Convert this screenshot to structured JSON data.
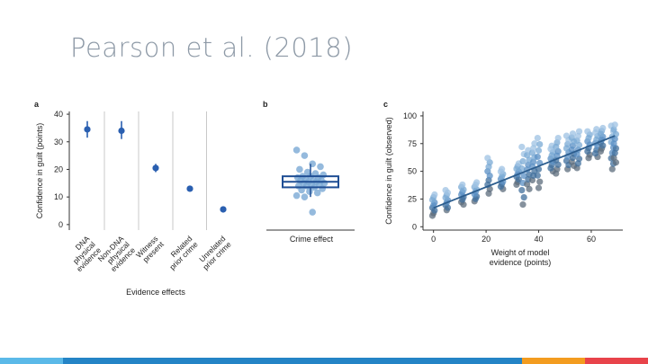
{
  "slide": {
    "title": "Pearson et al. (2018)"
  },
  "footer": {
    "colors": [
      "#5bb9e8",
      "#2484c6",
      "#f39c1f",
      "#e8434a"
    ]
  },
  "colors": {
    "marker": "#2a5fb0",
    "box": "#1f4e94",
    "scatter_points": [
      "#9ec2e3",
      "#7aa9d4",
      "#5a8fc4",
      "#406f9c",
      "#5c6c7c"
    ],
    "fit_line": "#2c5d8e",
    "divider": "#c8c8c8",
    "axis": "#333333"
  },
  "chart_data": [
    {
      "panel": "a",
      "type": "scatter",
      "categories": [
        "DNA physical evidence",
        "Non-DNA physical evidence",
        "Witness present",
        "Related prior crime",
        "Unrelated prior crime"
      ],
      "category_lines": [
        [
          "DNA",
          "physical",
          "evidence"
        ],
        [
          "Non-DNA",
          "physical",
          "evidence"
        ],
        [
          "Witness",
          "present"
        ],
        [
          "Related",
          "prior crime"
        ],
        [
          "Unrelated",
          "prior crime"
        ]
      ],
      "values": [
        34.5,
        34,
        20.5,
        13,
        5.5
      ],
      "errors": [
        [
          31.5,
          37.5
        ],
        [
          31,
          37.5
        ],
        [
          19,
          22
        ],
        [
          12,
          14
        ],
        [
          4.8,
          6.3
        ]
      ],
      "xlabel": "Evidence effects",
      "ylabel": "Confidence in guilt (points)",
      "ylim": [
        -2,
        41
      ],
      "yticks": [
        0,
        10,
        20,
        30,
        40
      ],
      "dividers": true
    },
    {
      "panel": "b",
      "type": "box",
      "xlabel": "Crime effect",
      "ylim": [
        -2,
        41
      ],
      "box": {
        "q1": 13.5,
        "median": 15.5,
        "q3": 17.5,
        "whisker_low": 10,
        "whisker_high": 22
      },
      "points": [
        27,
        25,
        22,
        21,
        20,
        19,
        18.5,
        18,
        17.5,
        17.5,
        17,
        17,
        16.5,
        16,
        16,
        16,
        15.5,
        15.5,
        15,
        15,
        14.5,
        14.5,
        14,
        14,
        13.5,
        13,
        12.5,
        12,
        11.5,
        10.5,
        10,
        4.5
      ]
    },
    {
      "panel": "c",
      "type": "scatter",
      "xlabel": "Weight of model evidence (points)",
      "ylabel": "Confidence in guilt (observed)",
      "xlim": [
        -4,
        72
      ],
      "ylim": [
        -3,
        104
      ],
      "xticks": [
        0,
        20,
        40,
        60
      ],
      "yticks": [
        0,
        25,
        50,
        75,
        100
      ],
      "fit_line": {
        "x": [
          0,
          69
        ],
        "y": [
          17,
          82
        ]
      },
      "columns": [
        {
          "x": 0,
          "ymin": 10,
          "ymax": 29
        },
        {
          "x": 5,
          "ymin": 15,
          "ymax": 33
        },
        {
          "x": 11,
          "ymin": 20,
          "ymax": 38
        },
        {
          "x": 16,
          "ymin": 23,
          "ymax": 40
        },
        {
          "x": 21,
          "ymin": 30,
          "ymax": 62
        },
        {
          "x": 26,
          "ymin": 34,
          "ymax": 52
        },
        {
          "x": 32,
          "ymin": 38,
          "ymax": 57
        },
        {
          "x": 34,
          "ymin": 20,
          "ymax": 72
        },
        {
          "x": 36,
          "ymin": 34,
          "ymax": 69
        },
        {
          "x": 38,
          "ymin": 42,
          "ymax": 75
        },
        {
          "x": 40,
          "ymin": 35,
          "ymax": 80
        },
        {
          "x": 45,
          "ymin": 50,
          "ymax": 73
        },
        {
          "x": 47,
          "ymin": 48,
          "ymax": 80
        },
        {
          "x": 51,
          "ymin": 52,
          "ymax": 82
        },
        {
          "x": 53,
          "ymin": 55,
          "ymax": 84
        },
        {
          "x": 55,
          "ymin": 53,
          "ymax": 86
        },
        {
          "x": 59,
          "ymin": 62,
          "ymax": 86
        },
        {
          "x": 62,
          "ymin": 63,
          "ymax": 88
        },
        {
          "x": 64,
          "ymin": 68,
          "ymax": 89
        },
        {
          "x": 68,
          "ymin": 52,
          "ymax": 91
        },
        {
          "x": 69,
          "ymin": 58,
          "ymax": 92
        }
      ]
    }
  ]
}
